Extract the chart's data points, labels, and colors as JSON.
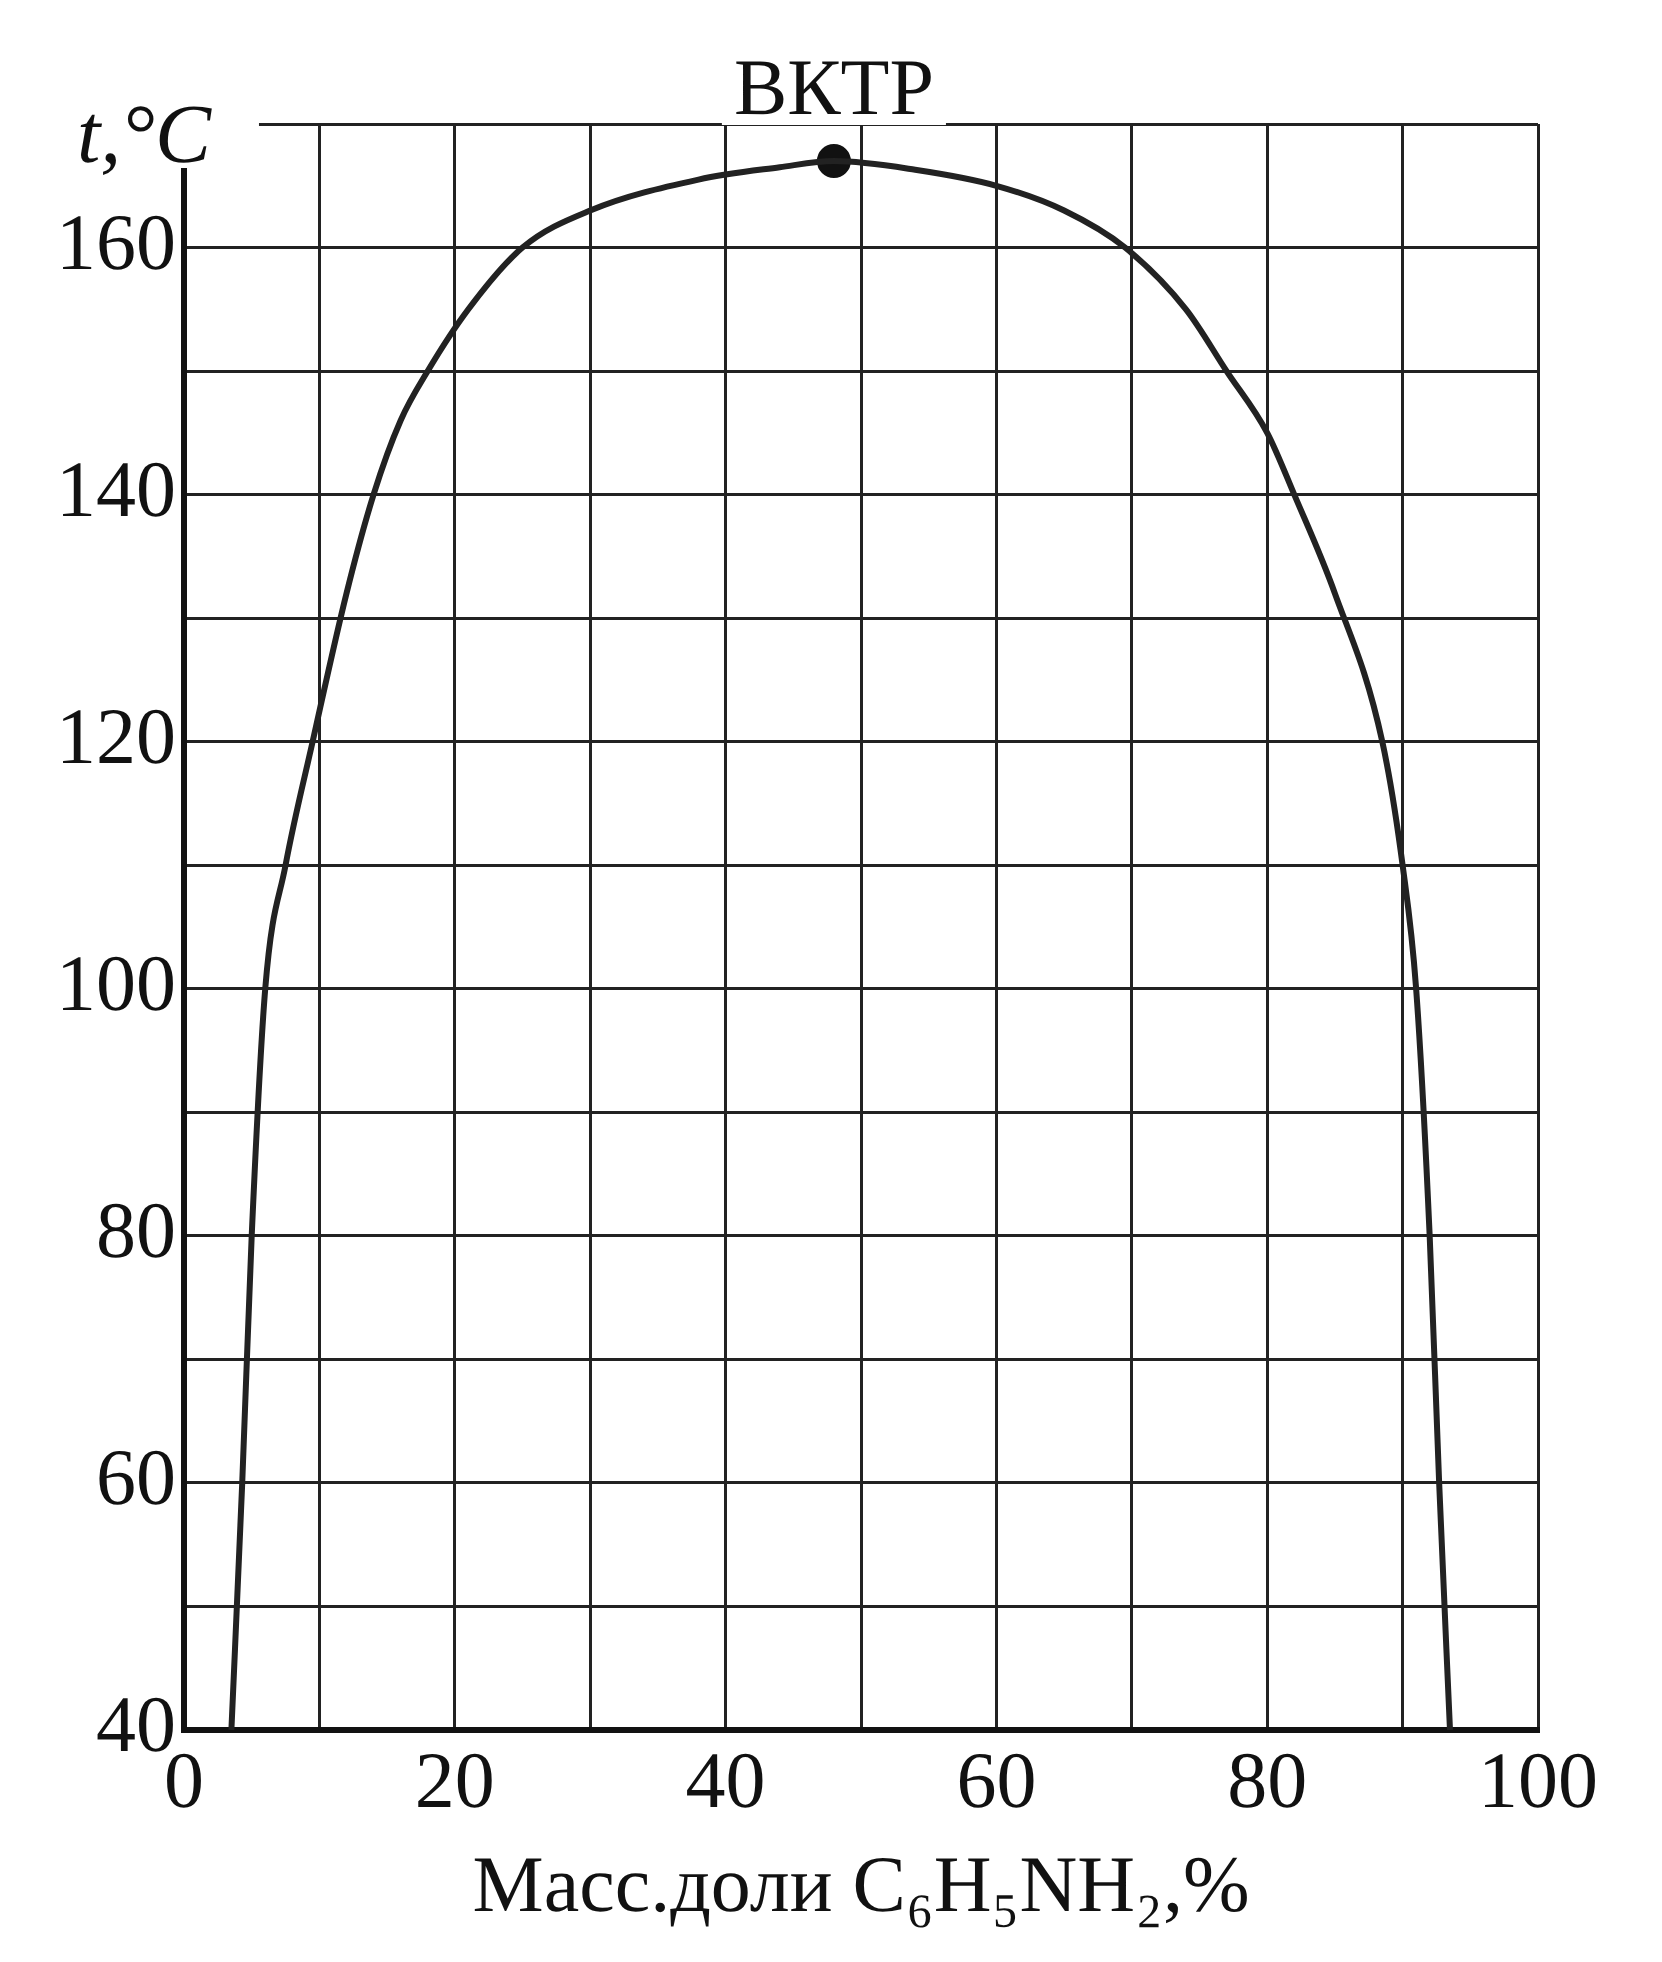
{
  "chart_data": {
    "type": "line",
    "xlabel": "Масс.доли C₆H₅NH₂,%",
    "ylabel": "t,°C",
    "series": [
      {
        "marker": "none",
        "color": "#222222",
        "x": [
          3.5,
          4.3,
          5,
          6,
          7.5,
          9.5,
          12,
          14,
          16,
          18,
          21,
          25,
          30,
          38,
          44,
          48,
          54,
          60,
          65,
          69.5,
          74,
          77,
          80,
          82,
          85,
          88.5,
          90,
          91,
          92,
          92.7,
          93.5
        ],
        "values": [
          40,
          60,
          80,
          100,
          110,
          120,
          132,
          140,
          146,
          150,
          155,
          160,
          163,
          165.5,
          166.5,
          167,
          166.3,
          165,
          163,
          160,
          155,
          150,
          145,
          140,
          132,
          120,
          110,
          100,
          80,
          60,
          40
        ]
      },
      {
        "type": "scatter",
        "marker": "circle",
        "color": "#111111",
        "x": [
          48
        ],
        "values": [
          167
        ]
      }
    ],
    "annotations": [
      {
        "text": "ВКТР",
        "x": 48,
        "y": 167
      }
    ],
    "xlim": [
      0,
      100
    ],
    "ylim": [
      40,
      170
    ],
    "xticks": [
      0,
      {
        "value": 10,
        "label": null
      },
      20,
      {
        "value": 30,
        "label": null
      },
      40,
      {
        "value": 50,
        "label": null
      },
      60,
      {
        "value": 70,
        "label": null
      },
      80,
      {
        "value": 90,
        "label": null
      },
      100
    ],
    "yticks": [
      40,
      {
        "value": 50,
        "label": null
      },
      60,
      {
        "value": 70,
        "label": null
      },
      80,
      {
        "value": 90,
        "label": null
      },
      100,
      {
        "value": 110,
        "label": null
      },
      120,
      {
        "value": 130,
        "label": null
      },
      140,
      {
        "value": 150,
        "label": null
      },
      160,
      {
        "value": 170,
        "label": null
      }
    ],
    "grid": true,
    "legend": false,
    "line_style": "solid"
  }
}
